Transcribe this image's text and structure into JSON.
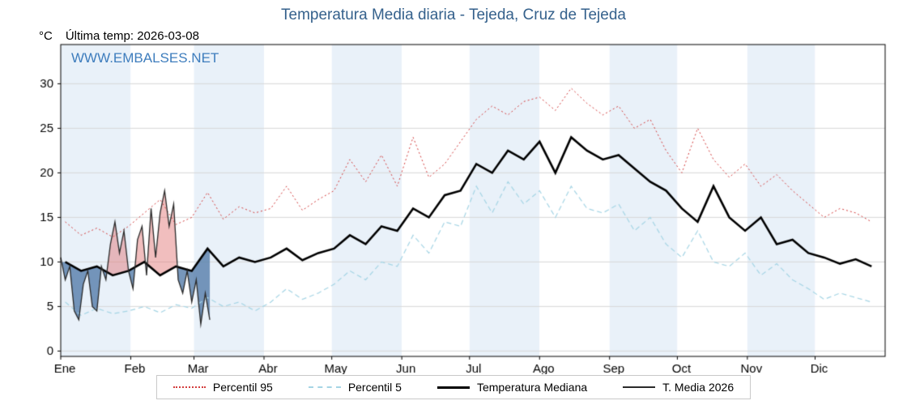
{
  "header": {
    "title": "Temperatura Media diaria - Tejeda, Cruz de Tejeda",
    "unit_label": "°C",
    "last_temp_label": "Última temp: 2026-03-08",
    "watermark": "WWW.EMBALSES.NET",
    "title_color": "#35618c",
    "watermark_color": "#3e7dbd"
  },
  "legend": [
    {
      "label": "Percentil 95",
      "color": "#d43d3d",
      "style": "dotted",
      "width": 2
    },
    {
      "label": "Percentil 5",
      "color": "#a5d5e5",
      "style": "dashed",
      "width": 2
    },
    {
      "label": "Temperatura Mediana",
      "color": "#000000",
      "style": "solid",
      "width": 3
    },
    {
      "label": "T. Media 2026",
      "color": "#2a2a2a",
      "style": "solid",
      "width": 2
    }
  ],
  "chart_data": {
    "type": "line",
    "title": "Temperatura Media diaria - Tejeda, Cruz de Tejeda",
    "xlabel": "",
    "ylabel": "°C",
    "xlim": [
      1,
      366
    ],
    "ylim": [
      -0.6,
      34.4
    ],
    "y_ticks": [
      0,
      5,
      10,
      15,
      20,
      25,
      30
    ],
    "month_labels": [
      "Ene",
      "Feb",
      "Mar",
      "Abr",
      "May",
      "Jun",
      "Jul",
      "Ago",
      "Sep",
      "Oct",
      "Nov",
      "Dic"
    ],
    "month_starts": [
      1,
      32,
      60,
      91,
      121,
      152,
      182,
      213,
      244,
      274,
      305,
      335
    ],
    "band_color": "#e9f1f9",
    "grid_color": "#d8d8d8",
    "fill_above": "rgba(225,110,110,0.45)",
    "fill_below": "rgba(85,125,170,0.8)",
    "series": [
      {
        "name": "Percentil 95",
        "color": "#d43d3d",
        "style": "dotted",
        "line_width": 1,
        "x": [
          3,
          10,
          17,
          24,
          31,
          38,
          45,
          52,
          59,
          66,
          73,
          80,
          87,
          94,
          101,
          108,
          115,
          122,
          129,
          136,
          143,
          150,
          157,
          164,
          171,
          178,
          185,
          192,
          199,
          206,
          213,
          220,
          227,
          234,
          241,
          248,
          255,
          262,
          269,
          276,
          283,
          290,
          297,
          304,
          311,
          318,
          325,
          332,
          339,
          346,
          353,
          360
        ],
        "values": [
          14.5,
          13.0,
          13.8,
          12.8,
          14.0,
          15.5,
          17.0,
          14.2,
          15.0,
          17.8,
          14.8,
          16.2,
          15.5,
          16.0,
          18.5,
          15.8,
          17.0,
          18.0,
          21.5,
          19.0,
          22.0,
          18.5,
          24.0,
          19.5,
          21.0,
          23.5,
          26.0,
          27.5,
          26.5,
          28.0,
          28.5,
          27.0,
          29.5,
          27.8,
          26.5,
          27.5,
          25.0,
          26.0,
          22.5,
          20.0,
          25.0,
          21.5,
          19.5,
          21.0,
          18.5,
          19.8,
          18.0,
          16.5,
          15.0,
          16.0,
          15.5,
          14.5
        ]
      },
      {
        "name": "Percentil 5",
        "color": "#a5d5e5",
        "style": "dashed",
        "line_width": 1.2,
        "x": [
          3,
          10,
          17,
          24,
          31,
          38,
          45,
          52,
          59,
          66,
          73,
          80,
          87,
          94,
          101,
          108,
          115,
          122,
          129,
          136,
          143,
          150,
          157,
          164,
          171,
          178,
          185,
          192,
          199,
          206,
          213,
          220,
          227,
          234,
          241,
          248,
          255,
          262,
          269,
          276,
          283,
          290,
          297,
          304,
          311,
          318,
          325,
          332,
          339,
          346,
          353,
          360
        ],
        "values": [
          5.5,
          4.0,
          4.8,
          4.2,
          4.5,
          5.0,
          4.3,
          5.2,
          4.8,
          6.0,
          5.0,
          5.5,
          4.5,
          5.5,
          7.0,
          5.8,
          6.5,
          7.5,
          9.0,
          8.0,
          10.0,
          9.5,
          13.0,
          11.0,
          14.5,
          14.0,
          18.5,
          15.5,
          19.0,
          16.5,
          18.0,
          15.0,
          18.5,
          16.0,
          15.5,
          16.5,
          13.5,
          15.0,
          12.0,
          10.5,
          13.5,
          10.0,
          9.5,
          11.0,
          8.5,
          9.8,
          8.0,
          7.0,
          5.8,
          6.5,
          6.0,
          5.5
        ]
      },
      {
        "name": "Temperatura Mediana",
        "color": "#000000",
        "style": "solid",
        "line_width": 2.6,
        "x": [
          3,
          10,
          17,
          24,
          31,
          38,
          45,
          52,
          59,
          66,
          73,
          80,
          87,
          94,
          101,
          108,
          115,
          122,
          129,
          136,
          143,
          150,
          157,
          164,
          171,
          178,
          185,
          192,
          199,
          206,
          213,
          220,
          227,
          234,
          241,
          248,
          255,
          262,
          269,
          276,
          283,
          290,
          297,
          304,
          311,
          318,
          325,
          332,
          339,
          346,
          353,
          360
        ],
        "values": [
          10.0,
          9.0,
          9.5,
          8.5,
          9.0,
          10.0,
          8.5,
          9.5,
          9.0,
          11.5,
          9.5,
          10.5,
          10.0,
          10.5,
          11.5,
          10.2,
          11.0,
          11.5,
          13.0,
          12.0,
          14.0,
          13.5,
          16.0,
          15.0,
          17.5,
          18.0,
          21.0,
          20.0,
          22.5,
          21.5,
          23.5,
          20.0,
          24.0,
          22.5,
          21.5,
          22.0,
          20.5,
          19.0,
          18.0,
          16.0,
          14.5,
          18.5,
          15.0,
          13.5,
          15.0,
          12.0,
          12.5,
          11.0,
          10.5,
          9.8,
          10.3,
          9.5
        ]
      },
      {
        "name": "T. Media 2026",
        "color": "#2a2a2a",
        "style": "solid",
        "line_width": 1.3,
        "x": [
          1,
          3,
          5,
          7,
          9,
          11,
          13,
          15,
          17,
          19,
          21,
          23,
          25,
          27,
          29,
          31,
          33,
          35,
          37,
          39,
          41,
          43,
          45,
          47,
          49,
          51,
          53,
          55,
          57,
          59,
          61,
          63,
          65,
          67
        ],
        "values": [
          10.5,
          8.0,
          9.5,
          4.5,
          3.5,
          7.5,
          9.0,
          5.0,
          4.5,
          9.5,
          8.0,
          12.0,
          14.5,
          11.0,
          13.5,
          9.0,
          7.0,
          12.5,
          14.0,
          8.5,
          16.0,
          10.5,
          15.5,
          18.0,
          14.0,
          16.5,
          8.0,
          6.5,
          9.0,
          5.5,
          8.0,
          3.0,
          6.5,
          3.5
        ]
      }
    ]
  }
}
